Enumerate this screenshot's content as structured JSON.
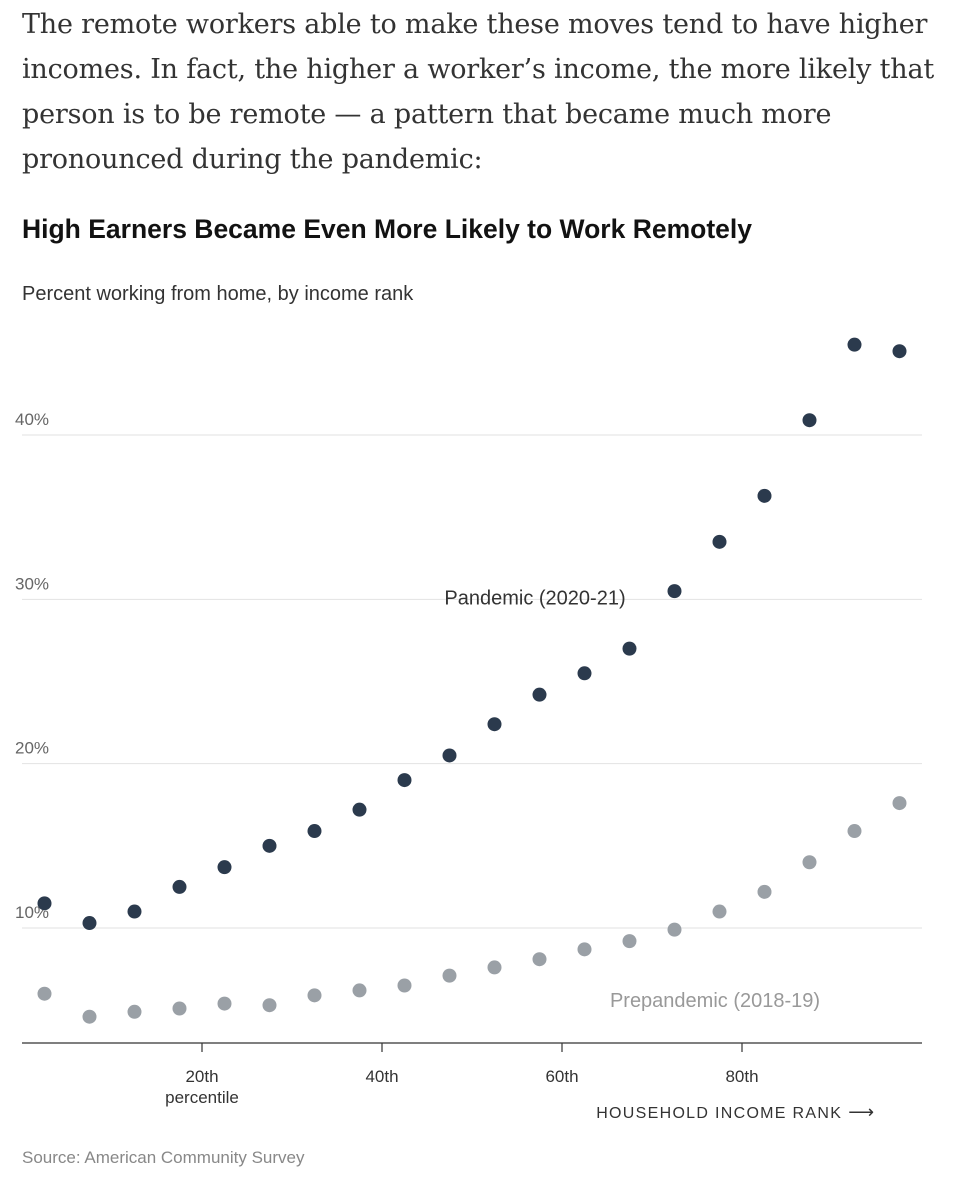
{
  "article": {
    "intro": "The remote workers able to make these moves tend to have higher incomes. In fact, the higher a worker’s income, the more likely that person is to be remote — a pattern that became much more pronounced during the pandemic:"
  },
  "source": "Source: American Community Survey",
  "chart_data": {
    "type": "scatter",
    "title": "High Earners Became Even More Likely to Work Remotely",
    "subtitle": "Percent working from home, by income rank",
    "xlabel": "HOUSEHOLD INCOME RANK",
    "xlabel_arrow": "⟶",
    "xlim": [
      0,
      100
    ],
    "ylim": [
      3,
      47
    ],
    "x_ticks": [
      {
        "value": 20,
        "label": "20th",
        "sublabel": "percentile"
      },
      {
        "value": 40,
        "label": "40th"
      },
      {
        "value": 60,
        "label": "60th"
      },
      {
        "value": 80,
        "label": "80th"
      }
    ],
    "y_ticks": [
      {
        "value": 10,
        "label": "10%"
      },
      {
        "value": 20,
        "label": "20%"
      },
      {
        "value": 30,
        "label": "30%"
      },
      {
        "value": 40,
        "label": "40%"
      }
    ],
    "grid": true,
    "series": [
      {
        "name": "Pandemic (2020-21)",
        "color": "#2b3a4d",
        "label_color": "#333333",
        "label_x": 57,
        "label_y": 29.7,
        "x": [
          2.5,
          7.5,
          12.5,
          17.5,
          22.5,
          27.5,
          32.5,
          37.5,
          42.5,
          47.5,
          52.5,
          57.5,
          62.5,
          67.5,
          72.5,
          77.5,
          82.5,
          87.5,
          92.5,
          97.5
        ],
        "y": [
          11.5,
          10.3,
          11.0,
          12.5,
          13.7,
          15.0,
          15.9,
          17.2,
          19.0,
          20.5,
          22.4,
          24.2,
          25.5,
          27.0,
          30.5,
          33.5,
          36.3,
          40.9,
          45.5,
          45.1
        ]
      },
      {
        "name": "Prepandemic (2018-19)",
        "color": "#9aa0a6",
        "label_color": "#999999",
        "label_x": 77,
        "label_y": 5.2,
        "x": [
          2.5,
          7.5,
          12.5,
          17.5,
          22.5,
          27.5,
          32.5,
          37.5,
          42.5,
          47.5,
          52.5,
          57.5,
          62.5,
          67.5,
          72.5,
          77.5,
          82.5,
          87.5,
          92.5,
          97.5
        ],
        "y": [
          6.0,
          4.6,
          4.9,
          5.1,
          5.4,
          5.3,
          5.9,
          6.2,
          6.5,
          7.1,
          7.6,
          8.1,
          8.7,
          9.2,
          9.9,
          11.0,
          12.2,
          14.0,
          15.9,
          17.6
        ]
      }
    ]
  }
}
